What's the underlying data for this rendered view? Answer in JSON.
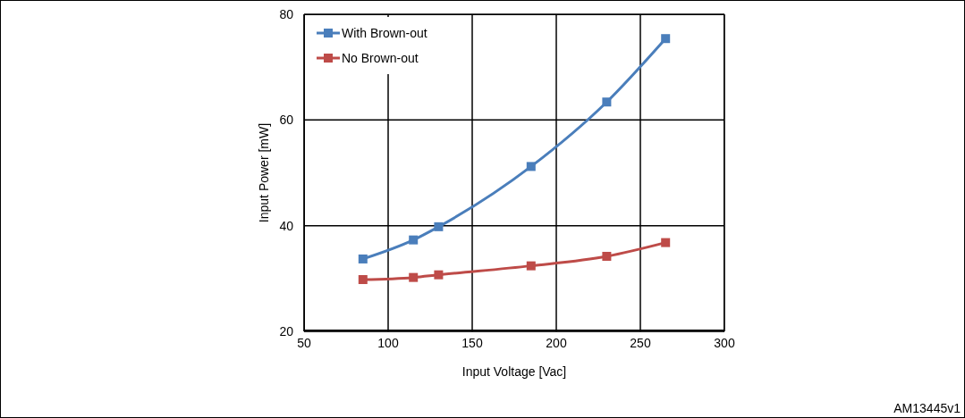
{
  "chart_data": {
    "type": "line",
    "xlabel": "Input Voltage [Vac]",
    "ylabel": "Input Power [mW]",
    "x": [
      85,
      115,
      130,
      185,
      230,
      265
    ],
    "series": [
      {
        "name": "With Brown-out",
        "color": "#4a7ebb",
        "values": [
          33.7,
          37.3,
          39.8,
          51.2,
          63.4,
          75.4
        ]
      },
      {
        "name": "No Brown-out",
        "color": "#be4b48",
        "values": [
          29.8,
          30.2,
          30.7,
          32.4,
          34.2,
          36.8
        ]
      }
    ],
    "xlim": [
      50,
      300
    ],
    "xticks": [
      50,
      100,
      150,
      200,
      250,
      300
    ],
    "ylim": [
      20,
      80
    ],
    "yticks": [
      20,
      40,
      60,
      80
    ],
    "grid": true,
    "legend": "top left",
    "marker": "square",
    "line_style": "solid",
    "annotations": [
      "AM13445v1"
    ]
  }
}
